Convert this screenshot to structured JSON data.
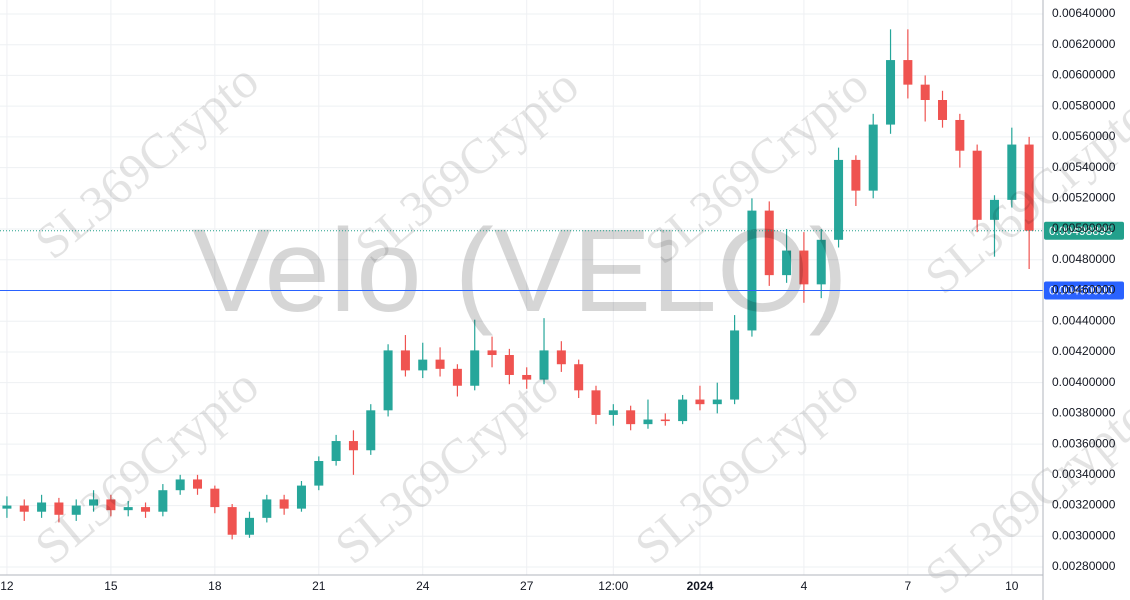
{
  "chart_data": {
    "type": "candlestick",
    "watermark": "Velo (VELO)",
    "brand_watermark": "SL369Crypto",
    "up_color": "#26a69a",
    "down_color": "#ef5350",
    "grid": true,
    "xlim": [
      -0.2,
      29.9
    ],
    "ylim": [
      0.002748,
      0.006491
    ],
    "xticks": [
      {
        "value": 0,
        "label": "12"
      },
      {
        "value": 3,
        "label": "15"
      },
      {
        "value": 6,
        "label": "18"
      },
      {
        "value": 9,
        "label": "21"
      },
      {
        "value": 12,
        "label": "24"
      },
      {
        "value": 15,
        "label": "27"
      },
      {
        "value": 17.5,
        "label": "12:00"
      },
      {
        "value": 20,
        "label": "2024"
      },
      {
        "value": 23,
        "label": "4"
      },
      {
        "value": 26,
        "label": "7"
      },
      {
        "value": 29,
        "label": "10"
      }
    ],
    "yticks": [
      {
        "value": 0.0028,
        "label": "0.00280000"
      },
      {
        "value": 0.003,
        "label": "0.00300000"
      },
      {
        "value": 0.0032,
        "label": "0.00320000"
      },
      {
        "value": 0.0034,
        "label": "0.00340000"
      },
      {
        "value": 0.0036,
        "label": "0.00360000"
      },
      {
        "value": 0.0038,
        "label": "0.00380000"
      },
      {
        "value": 0.004,
        "label": "0.00400000"
      },
      {
        "value": 0.0042,
        "label": "0.00420000"
      },
      {
        "value": 0.0044,
        "label": "0.00440000"
      },
      {
        "value": 0.0046,
        "label": "0.00460000"
      },
      {
        "value": 0.0048,
        "label": "0.00480000"
      },
      {
        "value": 0.005,
        "label": "0.00500000"
      },
      {
        "value": 0.0052,
        "label": "0.00520000"
      },
      {
        "value": 0.0054,
        "label": "0.00540000"
      },
      {
        "value": 0.0056,
        "label": "0.00560000"
      },
      {
        "value": 0.0058,
        "label": "0.00580000"
      },
      {
        "value": 0.006,
        "label": "0.00600000"
      },
      {
        "value": 0.0062,
        "label": "0.00620000"
      },
      {
        "value": 0.0064,
        "label": "0.00640000"
      }
    ],
    "price_line": {
      "value": 0.0046,
      "label": "0.00460000",
      "color": "#2962ff"
    },
    "last_price": {
      "value": 0.00498895,
      "label": "0.00498895",
      "color": "#22a08c"
    },
    "x": [
      0,
      0.5,
      1,
      1.5,
      2,
      2.5,
      3,
      3.5,
      4,
      4.5,
      5,
      5.5,
      6,
      6.5,
      7,
      7.5,
      8,
      8.5,
      9,
      9.5,
      10,
      10.5,
      11,
      11.5,
      12,
      12.5,
      13,
      13.5,
      14,
      14.5,
      15,
      15.5,
      16,
      16.5,
      17,
      17.5,
      18,
      18.5,
      19,
      19.5,
      20,
      20.5,
      21,
      21.5,
      22,
      22.5,
      23,
      23.5,
      24,
      24.5,
      25,
      25.5,
      26,
      26.5,
      27,
      27.5,
      28,
      28.5,
      29,
      29.5
    ],
    "open": [
      0.00318,
      0.0032,
      0.00316,
      0.00322,
      0.00314,
      0.0032,
      0.00324,
      0.00317,
      0.00319,
      0.00316,
      0.0033,
      0.00337,
      0.00331,
      0.00319,
      0.00301,
      0.00312,
      0.00324,
      0.00318,
      0.00333,
      0.00349,
      0.00362,
      0.00356,
      0.00382,
      0.00421,
      0.00408,
      0.00415,
      0.00409,
      0.00398,
      0.00421,
      0.00418,
      0.00405,
      0.00402,
      0.00421,
      0.00412,
      0.00395,
      0.00379,
      0.00382,
      0.00373,
      0.00376,
      0.00375,
      0.00389,
      0.00386,
      0.00389,
      0.00434,
      0.00512,
      0.0047,
      0.00486,
      0.00464,
      0.00493,
      0.00545,
      0.00525,
      0.00568,
      0.0061,
      0.00594,
      0.00584,
      0.00571,
      0.00551,
      0.00506,
      0.00519,
      0.00555
    ],
    "high": [
      0.00326,
      0.00324,
      0.00327,
      0.00325,
      0.00324,
      0.0033,
      0.00327,
      0.00323,
      0.00322,
      0.00334,
      0.0034,
      0.0034,
      0.00333,
      0.00321,
      0.00316,
      0.00327,
      0.00327,
      0.00336,
      0.00352,
      0.00366,
      0.00369,
      0.00386,
      0.00425,
      0.00431,
      0.00426,
      0.00423,
      0.00412,
      0.00441,
      0.0043,
      0.00422,
      0.0041,
      0.00442,
      0.00427,
      0.00415,
      0.00398,
      0.00386,
      0.00385,
      0.00389,
      0.0038,
      0.00392,
      0.00398,
      0.004,
      0.00444,
      0.0052,
      0.00518,
      0.005,
      0.00498,
      0.005,
      0.00553,
      0.00548,
      0.00575,
      0.0063,
      0.0063,
      0.006,
      0.0059,
      0.00575,
      0.00555,
      0.00522,
      0.00566,
      0.0056
    ],
    "low": [
      0.00312,
      0.0031,
      0.00312,
      0.00309,
      0.0031,
      0.00316,
      0.00313,
      0.00313,
      0.00312,
      0.00313,
      0.00327,
      0.00327,
      0.00315,
      0.00298,
      0.00299,
      0.00309,
      0.00314,
      0.00316,
      0.0033,
      0.00346,
      0.0034,
      0.00353,
      0.00378,
      0.00404,
      0.00403,
      0.00404,
      0.00391,
      0.00395,
      0.0041,
      0.00399,
      0.00396,
      0.00399,
      0.00407,
      0.0039,
      0.00373,
      0.00372,
      0.00369,
      0.0037,
      0.00372,
      0.00373,
      0.00382,
      0.0038,
      0.00386,
      0.0043,
      0.00463,
      0.00465,
      0.00452,
      0.00455,
      0.00488,
      0.00515,
      0.0052,
      0.00562,
      0.00585,
      0.0057,
      0.00566,
      0.0054,
      0.00498,
      0.00482,
      0.00514,
      0.00474
    ],
    "close": [
      0.0032,
      0.00316,
      0.00322,
      0.00314,
      0.0032,
      0.00324,
      0.00317,
      0.00319,
      0.00316,
      0.0033,
      0.00337,
      0.00331,
      0.00319,
      0.00301,
      0.00312,
      0.00324,
      0.00318,
      0.00333,
      0.00349,
      0.00362,
      0.00356,
      0.00382,
      0.00421,
      0.00408,
      0.00415,
      0.00409,
      0.00398,
      0.00421,
      0.00418,
      0.00405,
      0.00402,
      0.00421,
      0.00412,
      0.00395,
      0.00379,
      0.00382,
      0.00373,
      0.00376,
      0.00375,
      0.00389,
      0.00386,
      0.00389,
      0.00434,
      0.00512,
      0.0047,
      0.00486,
      0.00464,
      0.00493,
      0.00545,
      0.00525,
      0.00568,
      0.0061,
      0.00594,
      0.00584,
      0.00571,
      0.00551,
      0.00506,
      0.00519,
      0.00555,
      0.00498895
    ]
  }
}
